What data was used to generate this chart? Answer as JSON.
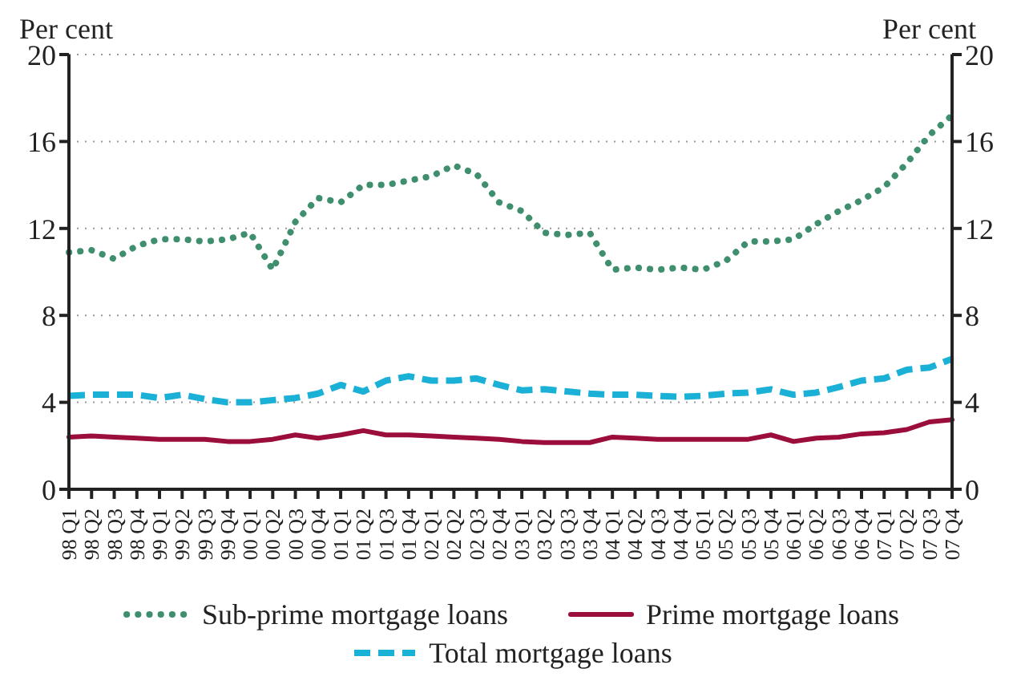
{
  "chart_data": {
    "type": "line",
    "ylabel": "Per cent",
    "y2label": "Per cent",
    "categories": [
      "98 Q1",
      "98 Q2",
      "98 Q3",
      "98 Q4",
      "99 Q1",
      "99 Q2",
      "99 Q3",
      "99 Q4",
      "00 Q1",
      "00 Q2",
      "00 Q3",
      "00 Q4",
      "01 Q1",
      "01 Q2",
      "01 Q3",
      "01 Q4",
      "02 Q1",
      "02 Q2",
      "02 Q3",
      "02 Q4",
      "03 Q1",
      "03 Q2",
      "03 Q3",
      "03 Q4",
      "04 Q1",
      "04 Q2",
      "04 Q3",
      "04 Q4",
      "05 Q1",
      "05 Q2",
      "05 Q3",
      "05 Q4",
      "06 Q1",
      "06 Q2",
      "06 Q3",
      "06 Q4",
      "07 Q1",
      "07 Q2",
      "07 Q3",
      "07 Q4"
    ],
    "series": [
      {
        "name": "Sub-prime mortgage loans",
        "color": "#3f8f6f",
        "line_style": "dotted",
        "values": [
          10.9,
          11.0,
          10.6,
          11.2,
          11.5,
          11.5,
          11.4,
          11.5,
          11.8,
          10.1,
          12.3,
          13.4,
          13.2,
          14.0,
          14.0,
          14.2,
          14.4,
          14.9,
          14.5,
          13.2,
          12.8,
          11.8,
          11.7,
          11.8,
          10.1,
          10.2,
          10.1,
          10.2,
          10.1,
          10.5,
          11.4,
          11.4,
          11.5,
          12.2,
          12.8,
          13.3,
          13.9,
          15.0,
          16.3,
          17.2
        ]
      },
      {
        "name": "Prime mortgage loans",
        "color": "#9b0d3a",
        "line_style": "solid",
        "values": [
          2.4,
          2.45,
          2.4,
          2.35,
          2.3,
          2.3,
          2.3,
          2.2,
          2.2,
          2.3,
          2.5,
          2.35,
          2.5,
          2.7,
          2.5,
          2.5,
          2.45,
          2.4,
          2.35,
          2.3,
          2.2,
          2.15,
          2.15,
          2.15,
          2.4,
          2.35,
          2.3,
          2.3,
          2.3,
          2.3,
          2.3,
          2.5,
          2.2,
          2.35,
          2.4,
          2.55,
          2.6,
          2.75,
          3.1,
          3.2
        ]
      },
      {
        "name": "Total mortgage loans",
        "color": "#1bb0d6",
        "line_style": "dashed",
        "values": [
          4.3,
          4.35,
          4.35,
          4.35,
          4.2,
          4.35,
          4.15,
          4.0,
          4.0,
          4.1,
          4.2,
          4.4,
          4.8,
          4.5,
          5.0,
          5.2,
          5.0,
          5.0,
          5.1,
          4.8,
          4.55,
          4.6,
          4.5,
          4.4,
          4.35,
          4.35,
          4.3,
          4.25,
          4.3,
          4.4,
          4.45,
          4.6,
          4.35,
          4.45,
          4.7,
          5.0,
          5.1,
          5.5,
          5.6,
          6.0
        ]
      }
    ],
    "ylim": [
      0,
      20
    ],
    "yticks": [
      0,
      4,
      8,
      12,
      16,
      20
    ],
    "y2lim": [
      0,
      20
    ],
    "y2ticks": [
      0,
      4,
      8,
      12,
      16,
      20
    ],
    "grid": "y",
    "legend": "bottom",
    "marker": "none"
  }
}
